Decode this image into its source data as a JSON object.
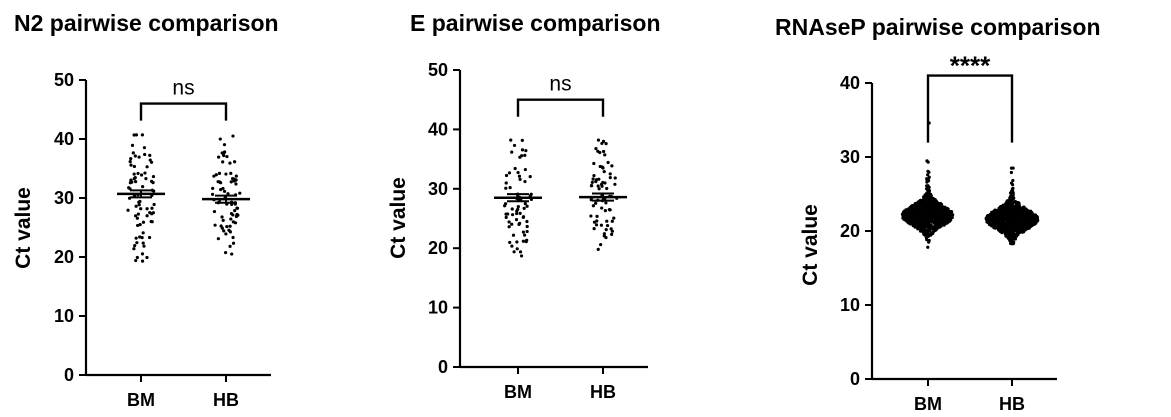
{
  "chart_data": [
    {
      "type": "scatter",
      "title": "N2 pairwise comparison",
      "xlabel": "",
      "ylabel": "Ct value",
      "ylim": [
        0,
        50
      ],
      "yticks": [
        0,
        10,
        20,
        30,
        40,
        50
      ],
      "categories": [
        "BM",
        "HB"
      ],
      "series": [
        {
          "category": "BM",
          "n": 75,
          "min": 19.3,
          "max": 40.7,
          "mean": 30.7,
          "sem": 0.6
        },
        {
          "category": "HB",
          "n": 75,
          "min": 20.5,
          "max": 40.5,
          "mean": 29.8,
          "sem": 0.6
        }
      ],
      "significance": {
        "between": [
          "BM",
          "HB"
        ],
        "label": "ns",
        "y": 46
      }
    },
    {
      "type": "scatter",
      "title": "E pairwise comparison",
      "xlabel": "",
      "ylabel": "Ct value",
      "ylim": [
        0,
        50
      ],
      "yticks": [
        0,
        10,
        20,
        30,
        40,
        50
      ],
      "categories": [
        "BM",
        "HB"
      ],
      "series": [
        {
          "category": "BM",
          "n": 70,
          "min": 18.7,
          "max": 38.2,
          "mean": 28.5,
          "sem": 0.6
        },
        {
          "category": "HB",
          "n": 70,
          "min": 19.8,
          "max": 38.2,
          "mean": 28.6,
          "sem": 0.6
        }
      ],
      "significance": {
        "between": [
          "BM",
          "HB"
        ],
        "label": "ns",
        "y": 45
      }
    },
    {
      "type": "scatter",
      "title": "RNAseP pairwise comparison",
      "xlabel": "",
      "ylabel": "Ct value",
      "ylim": [
        0,
        40
      ],
      "yticks": [
        0,
        10,
        20,
        30,
        40
      ],
      "categories": [
        "BM",
        "HB"
      ],
      "series": [
        {
          "category": "BM",
          "n": 1000,
          "min": 17.8,
          "max": 34.6,
          "mean": 22.1,
          "sem": 0.1
        },
        {
          "category": "HB",
          "n": 1000,
          "min": 18.3,
          "max": 28.5,
          "mean": 21.6,
          "sem": 0.1
        }
      ],
      "significance": {
        "between": [
          "BM",
          "HB"
        ],
        "label": "****",
        "y": 41
      }
    }
  ]
}
